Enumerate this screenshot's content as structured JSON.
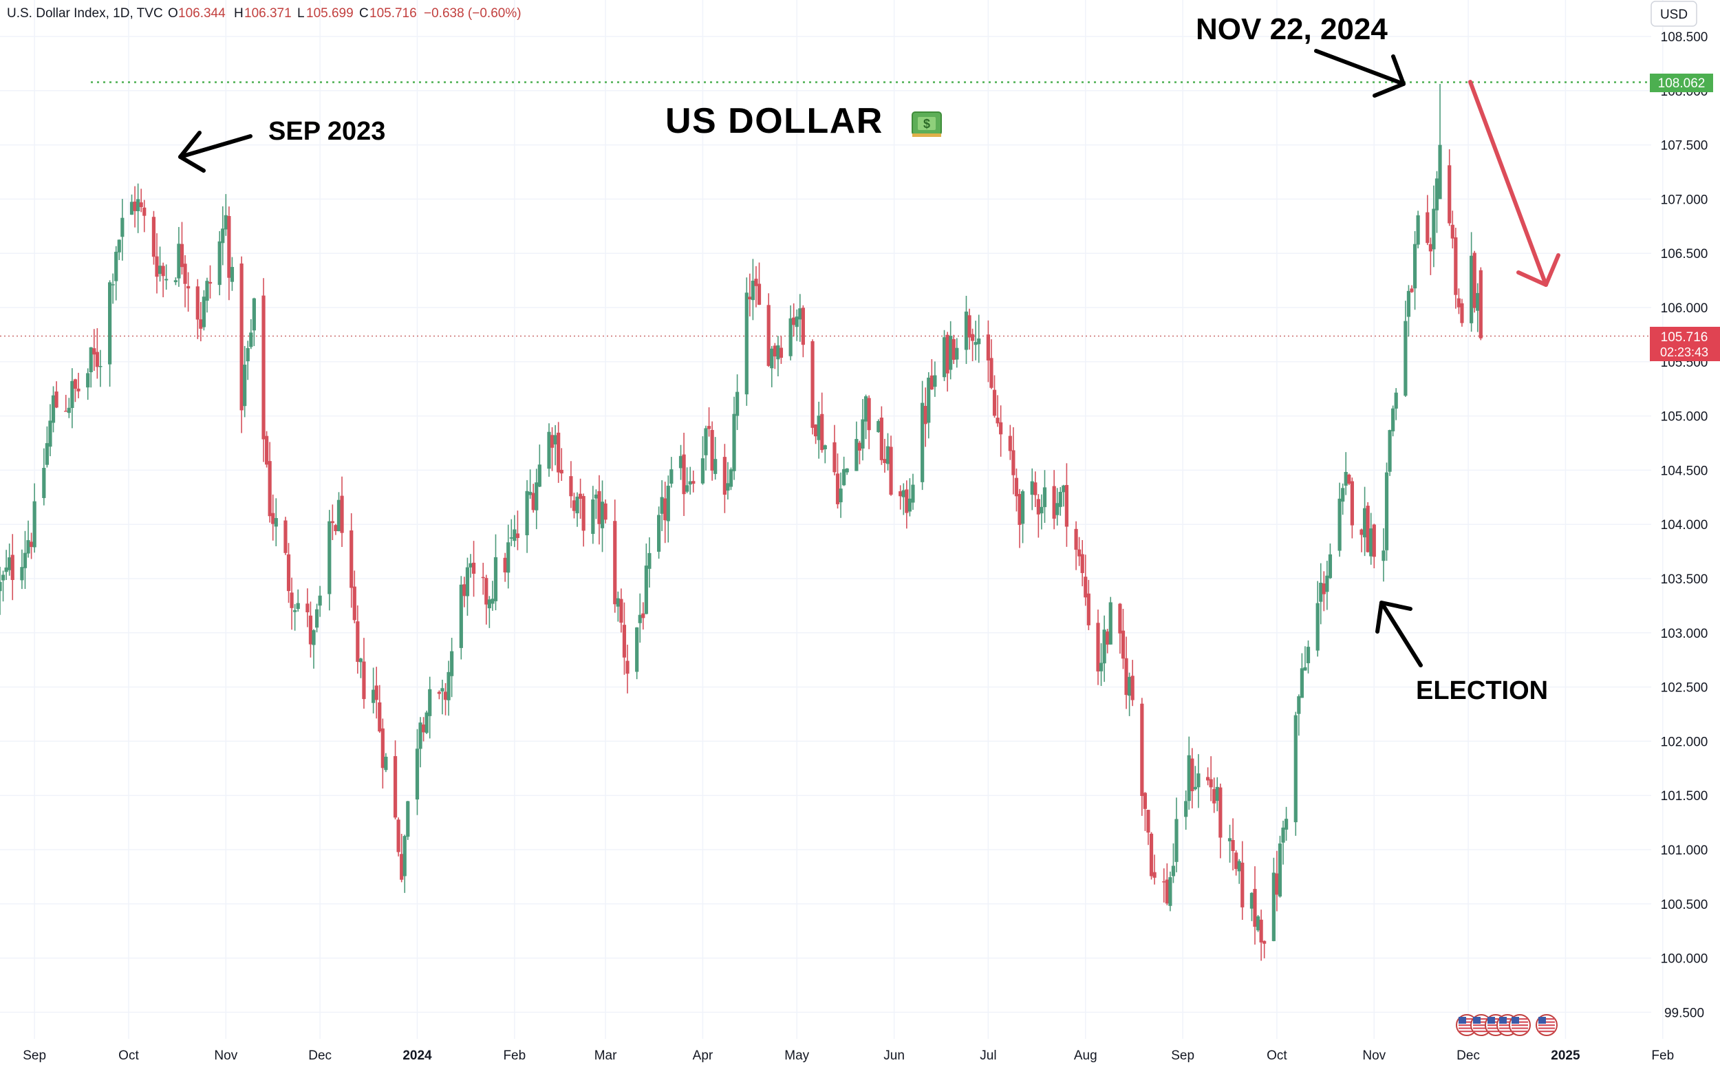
{
  "header": {
    "symbol": "U.S. Dollar Index, 1D, TVC",
    "o_label": "O",
    "o_value": "106.344",
    "h_label": "H",
    "h_value": "106.371",
    "l_label": "L",
    "l_value": "105.699",
    "c_label": "C",
    "c_value": "105.716",
    "change": "−0.638 (−0.60%)"
  },
  "currency_button": "USD",
  "price_tag_level": "108.062",
  "price_tag_last": "105.716",
  "countdown": "02:23:43",
  "annotations": {
    "title": "US DOLLAR",
    "sep_label": "SEP 2023",
    "nov_label": "NOV 22, 2024",
    "election_label": "ELECTION"
  },
  "colors": {
    "up": "#4b9a7a",
    "down": "#d5505b",
    "level_line": "#4caf50",
    "arrow_red": "#dc4c59",
    "price_line": "#c96a6a"
  },
  "icons": [
    "money-emoji-icon",
    "us-flag-event-icon"
  ],
  "chart_data": {
    "type": "candlestick",
    "interval": "1D",
    "ylim": [
      99.35,
      108.6
    ],
    "y_ticks": [
      "99.500",
      "100.000",
      "100.500",
      "101.000",
      "101.500",
      "102.000",
      "102.500",
      "103.000",
      "103.500",
      "104.000",
      "104.500",
      "105.000",
      "105.500",
      "106.000",
      "106.500",
      "107.000",
      "107.500",
      "108.000",
      "108.500"
    ],
    "x_ticks": [
      "Sep",
      "Oct",
      "Nov",
      "Dec",
      "2024",
      "Feb",
      "Mar",
      "Apr",
      "May",
      "Jun",
      "Jul",
      "Aug",
      "Sep",
      "Oct",
      "Nov",
      "Dec",
      "2025",
      "Feb"
    ],
    "horizontal_level": 108.062,
    "last_price": 105.716,
    "path": [
      [
        "2023-08-21",
        103.4
      ],
      [
        "2023-09-01",
        104.0
      ],
      [
        "2023-09-07",
        105.1
      ],
      [
        "2023-09-14",
        105.2
      ],
      [
        "2023-09-22",
        105.6
      ],
      [
        "2023-09-27",
        106.6
      ],
      [
        "2023-10-03",
        107.0
      ],
      [
        "2023-10-12",
        106.3
      ],
      [
        "2023-10-18",
        106.5
      ],
      [
        "2023-10-24",
        105.9
      ],
      [
        "2023-11-01",
        106.8
      ],
      [
        "2023-11-06",
        105.2
      ],
      [
        "2023-11-10",
        105.9
      ],
      [
        "2023-11-15",
        104.2
      ],
      [
        "2023-11-21",
        103.5
      ],
      [
        "2023-11-29",
        102.9
      ],
      [
        "2023-12-05",
        104.0
      ],
      [
        "2023-12-08",
        104.1
      ],
      [
        "2023-12-13",
        102.6
      ],
      [
        "2023-12-18",
        102.5
      ],
      [
        "2023-12-27",
        100.9
      ],
      [
        "2024-01-02",
        102.3
      ],
      [
        "2024-01-09",
        102.3
      ],
      [
        "2024-01-16",
        103.5
      ],
      [
        "2024-01-22",
        103.3
      ],
      [
        "2024-02-02",
        103.9
      ],
      [
        "2024-02-13",
        104.9
      ],
      [
        "2024-02-20",
        104.1
      ],
      [
        "2024-02-29",
        104.1
      ],
      [
        "2024-03-08",
        102.7
      ],
      [
        "2024-03-14",
        103.4
      ],
      [
        "2024-03-21",
        104.3
      ],
      [
        "2024-03-28",
        104.5
      ],
      [
        "2024-04-02",
        104.8
      ],
      [
        "2024-04-08",
        104.1
      ],
      [
        "2024-04-16",
        106.2
      ],
      [
        "2024-04-23",
        105.6
      ],
      [
        "2024-05-01",
        106.0
      ],
      [
        "2024-05-06",
        105.1
      ],
      [
        "2024-05-15",
        104.3
      ],
      [
        "2024-05-23",
        105.1
      ],
      [
        "2024-06-04",
        104.1
      ],
      [
        "2024-06-12",
        105.2
      ],
      [
        "2024-06-21",
        105.8
      ],
      [
        "2024-06-27",
        105.9
      ],
      [
        "2024-07-03",
        105.0
      ],
      [
        "2024-07-12",
        104.1
      ],
      [
        "2024-07-18",
        104.3
      ],
      [
        "2024-07-26",
        104.2
      ],
      [
        "2024-08-02",
        103.2
      ],
      [
        "2024-08-05",
        102.7
      ],
      [
        "2024-08-09",
        103.1
      ],
      [
        "2024-08-16",
        102.4
      ],
      [
        "2024-08-23",
        100.7
      ],
      [
        "2024-08-27",
        100.6
      ],
      [
        "2024-09-03",
        101.7
      ],
      [
        "2024-09-10",
        101.6
      ],
      [
        "2024-09-17",
        100.8
      ],
      [
        "2024-09-24",
        100.4
      ],
      [
        "2024-09-27",
        100.3
      ],
      [
        "2024-10-01",
        100.7
      ],
      [
        "2024-10-08",
        102.4
      ],
      [
        "2024-10-16",
        103.5
      ],
      [
        "2024-10-23",
        104.3
      ],
      [
        "2024-10-31",
        103.9
      ],
      [
        "2024-11-04",
        103.9
      ],
      [
        "2024-11-06",
        104.9
      ],
      [
        "2024-11-12",
        106.0
      ],
      [
        "2024-11-15",
        106.7
      ],
      [
        "2024-11-19",
        106.3
      ],
      [
        "2024-11-22",
        107.5
      ],
      [
        "2024-11-25",
        106.8
      ],
      [
        "2024-11-27",
        106.3
      ],
      [
        "2024-11-29",
        105.8
      ],
      [
        "2024-12-02",
        106.4
      ],
      [
        "2024-12-05",
        105.7
      ]
    ],
    "annotations": [
      {
        "text": "SEP 2023"
      },
      {
        "text": "NOV 22, 2024"
      },
      {
        "text": "ELECTION"
      },
      {
        "text": "US DOLLAR"
      }
    ]
  }
}
